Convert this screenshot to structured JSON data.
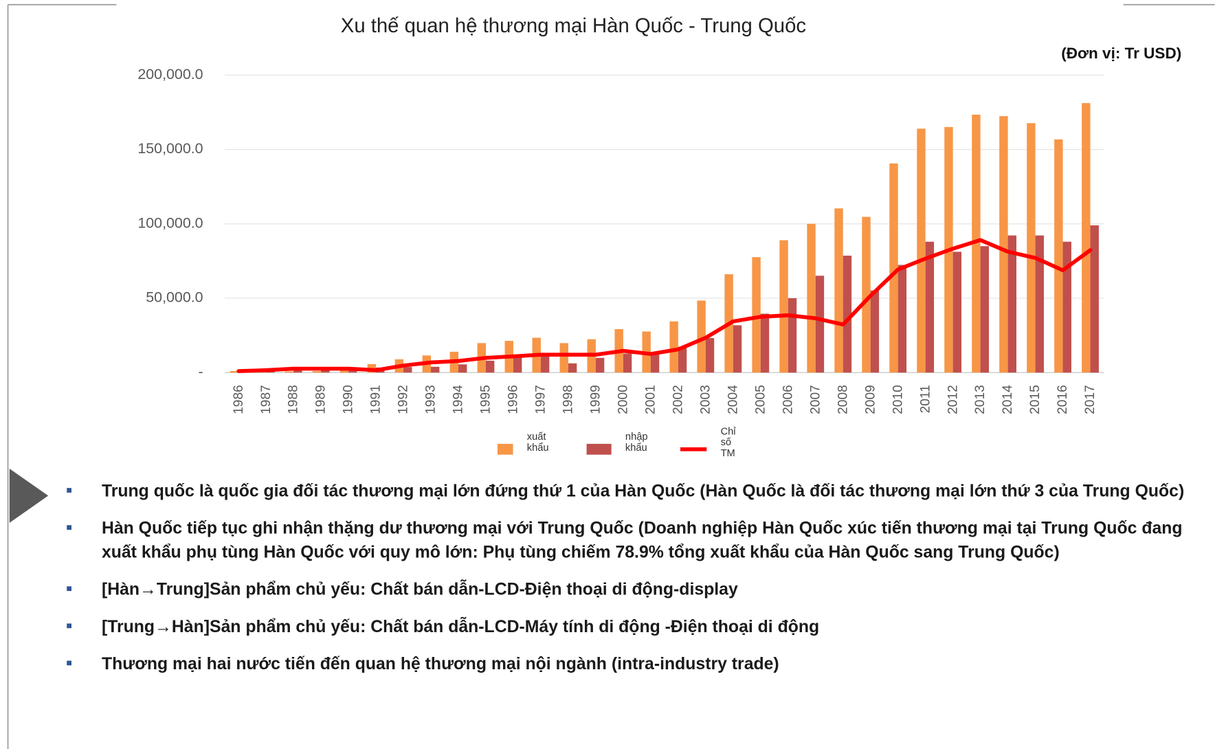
{
  "chart_data": {
    "type": "bar-line",
    "title": "Xu thế quan hệ thương mại Hàn Quốc - Trung Quốc",
    "unit_label": "(Đơn vị: Tr USD)",
    "categories": [
      "1986",
      "1987",
      "1988",
      "1989",
      "1990",
      "1991",
      "1992",
      "1993",
      "1994",
      "1995",
      "1996",
      "1997",
      "1998",
      "1999",
      "2000",
      "2001",
      "2002",
      "2003",
      "2004",
      "2005",
      "2006",
      "2007",
      "2008",
      "2009",
      "2010",
      "2011",
      "2012",
      "2013",
      "2014",
      "2015",
      "2016",
      "2017"
    ],
    "series": [
      {
        "name": "xuất khẩu",
        "type": "bar",
        "color": "#f79646",
        "values": [
          1000,
          600,
          800,
          1000,
          1600,
          5700,
          8900,
          11500,
          14000,
          19800,
          21300,
          23400,
          19800,
          22400,
          29200,
          27600,
          34400,
          48400,
          66100,
          77600,
          89000,
          100000,
          110400,
          104700,
          140600,
          164000,
          165100,
          173400,
          172400,
          167700,
          156800,
          181200
        ]
      },
      {
        "name": "nhập khẩu",
        "type": "bar",
        "color": "#c0504d",
        "values": [
          1000,
          1500,
          2000,
          2500,
          2800,
          3400,
          3700,
          3900,
          5500,
          8000,
          11000,
          11000,
          6200,
          9900,
          12800,
          13300,
          17400,
          23200,
          31800,
          39600,
          50000,
          65100,
          78600,
          55200,
          72400,
          88000,
          81200,
          85000,
          92200,
          92200,
          88000,
          99000
        ]
      },
      {
        "name": "Chỉ số TM",
        "type": "line",
        "color": "#ff0000",
        "values": [
          1000,
          1600,
          2600,
          2600,
          2600,
          1600,
          4700,
          6800,
          7800,
          9900,
          10900,
          12000,
          12000,
          12000,
          14600,
          12500,
          15600,
          23400,
          34400,
          37500,
          38500,
          36500,
          32300,
          51600,
          69300,
          76600,
          83300,
          89100,
          81300,
          77100,
          68800,
          82300
        ]
      }
    ],
    "ylim": [
      0,
      200000
    ],
    "yticks": [
      {
        "value": 0,
        "label": "-"
      },
      {
        "value": 50000,
        "label": "50,000.0"
      },
      {
        "value": 100000,
        "label": "100,000.0"
      },
      {
        "value": 150000,
        "label": "150,000.0"
      },
      {
        "value": 200000,
        "label": "200,000.0"
      }
    ],
    "grid": true,
    "legend": "bottom"
  },
  "bullets": [
    "Trung quốc là quốc gia đối tác thương mại lớn đứng thứ 1 của Hàn Quốc (Hàn Quốc là đối tác thương mại lớn thứ 3 của Trung Quốc)",
    "Hàn Quốc tiếp tục ghi nhận thặng dư thương mại với Trung Quốc (Doanh nghiệp Hàn Quốc xúc tiến thương mại tại Trung Quốc đang xuất khẩu phụ tùng Hàn Quốc với quy mô lớn: Phụ tùng chiếm 78.9% tổng xuất khẩu của Hàn Quốc sang Trung Quốc)",
    "[Hàn→Trung]Sản phẩm chủ yếu: Chất bán dẫn-LCD-Điện thoại di động-display",
    "[Trung→Hàn]Sản phẩm chủ yếu: Chất bán dẫn-LCD-Máy tính di động -Điện thoại di động",
    "Thương mại hai nước tiến đến quan hệ thương mại nội ngành (intra-industry trade)"
  ]
}
